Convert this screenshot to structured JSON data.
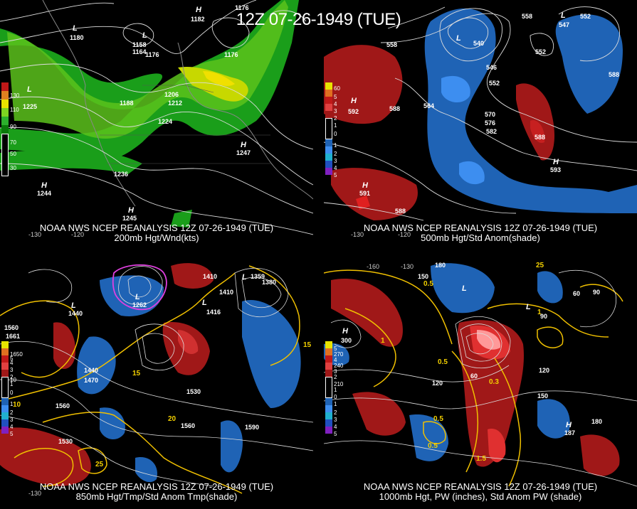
{
  "title": "12Z 07-26-1949 (TUE)",
  "colors": {
    "green": "#1a9e1a",
    "lightgreen": "#7ed321",
    "yellow": "#e8e400",
    "red": "#b01818",
    "blue": "#1f63b5",
    "gold": "#f0c000"
  },
  "panels": {
    "p200": {
      "caption1": "NOAA NWS NCEP REANALYSIS 12Z 07-26-1949 (TUE)",
      "caption2": "200mb Hgt/Wnd(kts)",
      "legend": [
        "130",
        "110",
        "90",
        "70",
        "50",
        "30"
      ],
      "lon": [
        "-130",
        "-120"
      ],
      "labels": [
        "H",
        "1182",
        "1176",
        "L",
        "1180",
        "L",
        "1158",
        "1164",
        "1176",
        "1176",
        "L",
        "1225",
        "1188",
        "1206",
        "1212",
        "1224",
        "H",
        "1247",
        "1236",
        "H",
        "1244",
        "H",
        "1245"
      ]
    },
    "p500": {
      "caption1": "NOAA NWS NCEP REANALYSIS 12Z 07-26-1949 (TUE)",
      "caption2": "500mb Hgt/Std Anom(shade)",
      "legend": [
        "60",
        "5",
        "4",
        "3",
        "2",
        "1",
        "0",
        "1",
        "2",
        "3",
        "4",
        "5"
      ],
      "lon": [
        "-130",
        "-120"
      ],
      "labels": [
        "552",
        "558",
        "L",
        "547",
        "552",
        "558",
        "L",
        "540",
        "546",
        "552",
        "564",
        "588",
        "H",
        "592",
        "570",
        "576",
        "582",
        "588",
        "588",
        "H",
        "591",
        "588",
        "H",
        "593"
      ]
    },
    "p850": {
      "caption1": "NOAA NWS NCEP REANALYSIS 12Z 07-26-1949 (TUE)",
      "caption2": "850mb Hgt/Tmp/Std Anom Tmp(shade)",
      "legend": [
        "1650",
        "10",
        "5",
        "4",
        "3",
        "2",
        "1",
        "0",
        "1",
        "2",
        "3",
        "4",
        "5"
      ],
      "lon": [
        "-130"
      ],
      "labels": [
        "L",
        "1440",
        "1410",
        "L",
        "1359",
        "1380",
        "1410",
        "L",
        "1416",
        "L",
        "1262",
        "1560",
        "1661",
        "1440",
        "1470",
        "1530",
        "1560",
        "1560",
        "1590",
        "1530",
        "10",
        "15",
        "20",
        "25",
        "15"
      ]
    },
    "p1000": {
      "caption1": "NOAA NWS NCEP REANALYSIS 12Z 07-26-1949 (TUE)",
      "caption2": "1000mb Hgt, PW (inches), Std Anom PW (shade)",
      "legend": [
        "270",
        "240",
        "210",
        "5",
        "4",
        "3",
        "2",
        "1",
        "0",
        "1",
        "2",
        "3",
        "4",
        "5"
      ],
      "lon": [
        "-160",
        "-130"
      ],
      "labels": [
        "180",
        "150",
        "120",
        "90",
        "60",
        "H",
        "300",
        "0.5",
        "0.5",
        "1",
        "1",
        "0.5",
        "0.3",
        "0.5",
        "1.5",
        "120",
        "150",
        "180",
        "60",
        "90",
        "H",
        "187",
        "L",
        "L",
        "25"
      ]
    }
  }
}
